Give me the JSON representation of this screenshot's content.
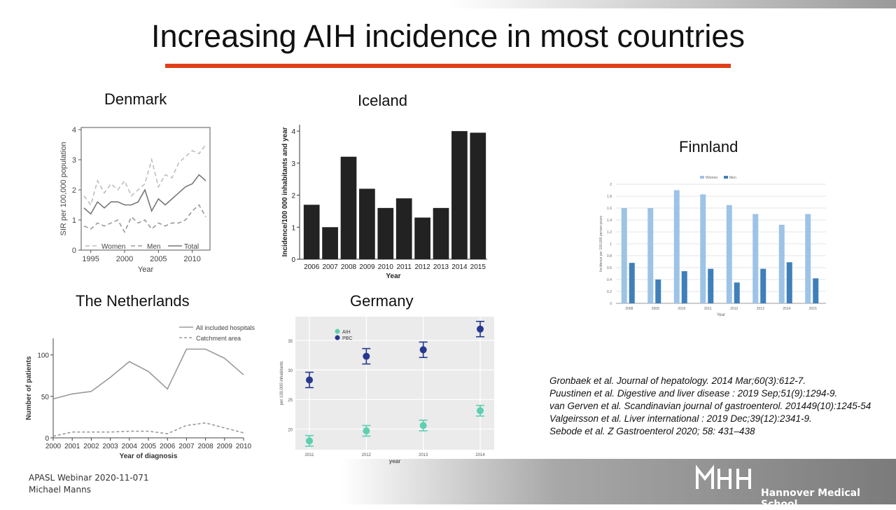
{
  "slide": {
    "title": "Increasing AIH incidence in most countries",
    "accent_color": "#e0401b",
    "references": [
      "Gronbaek et al. Journal of hepatology. 2014 Mar;60(3):612-7.",
      "Puustinen et al. Digestive and liver disease : 2019 Sep;51(9):1294-9.",
      "van Gerven et al. Scandinavian journal of gastroenterol. 201449(10):1245-54",
      "Valgeirsson et al. Liver international : 2019 Dec;39(12):2341-9.",
      "Sebode et al. Z Gastroenterol 2020; 58: 431–438"
    ],
    "footer": [
      "APASL Webinar 2020-11-071",
      "Michael Manns"
    ],
    "logo_text": "Hannover Medical School",
    "logo_icon": "mhh-logo-icon"
  },
  "chart_data": [
    {
      "country": "Denmark",
      "type": "line",
      "ylabel": "SIR per 100,000 population",
      "xlabel": "Year",
      "ylim": [
        0,
        4
      ],
      "xlim": [
        1994,
        2012
      ],
      "x_ticks": [
        1995,
        2000,
        2005,
        2010
      ],
      "y_ticks": [
        0,
        1,
        2,
        3,
        4
      ],
      "legend": [
        "Women",
        "Men",
        "Total"
      ],
      "legend_position": "bottom",
      "series": [
        {
          "name": "Women",
          "style": "dashed-light",
          "x": [
            1994,
            1995,
            1996,
            1997,
            1998,
            1999,
            2000,
            2001,
            2002,
            2003,
            2004,
            2005,
            2006,
            2007,
            2008,
            2009,
            2010,
            2011,
            2012
          ],
          "values": [
            1.8,
            1.5,
            2.3,
            1.9,
            2.2,
            2.0,
            2.3,
            1.8,
            2.0,
            2.2,
            3.0,
            2.1,
            2.5,
            2.4,
            2.9,
            3.1,
            3.3,
            3.2,
            3.5
          ]
        },
        {
          "name": "Men",
          "style": "dashed-dark",
          "x": [
            1994,
            1995,
            1996,
            1997,
            1998,
            1999,
            2000,
            2001,
            2002,
            2003,
            2004,
            2005,
            2006,
            2007,
            2008,
            2009,
            2010,
            2011,
            2012
          ],
          "values": [
            0.8,
            0.7,
            0.9,
            0.8,
            0.9,
            1.0,
            0.6,
            1.1,
            0.9,
            1.0,
            0.7,
            0.9,
            0.8,
            0.9,
            0.9,
            1.0,
            1.3,
            1.5,
            1.1
          ]
        },
        {
          "name": "Total",
          "style": "solid",
          "x": [
            1994,
            1995,
            1996,
            1997,
            1998,
            1999,
            2000,
            2001,
            2002,
            2003,
            2004,
            2005,
            2006,
            2007,
            2008,
            2009,
            2010,
            2011,
            2012
          ],
          "values": [
            1.4,
            1.2,
            1.6,
            1.4,
            1.6,
            1.6,
            1.5,
            1.5,
            1.6,
            2.0,
            1.3,
            1.7,
            1.5,
            1.7,
            1.9,
            2.1,
            2.2,
            2.5,
            2.3
          ]
        }
      ]
    },
    {
      "country": "Iceland",
      "type": "bar",
      "ylabel": "Incidence/100 000 inhabitants and year",
      "xlabel": "Year",
      "ylim": [
        0,
        4.2
      ],
      "y_ticks": [
        0,
        1,
        2,
        3,
        4
      ],
      "categories": [
        "2006",
        "2007",
        "2008",
        "2009",
        "2010",
        "2011",
        "2012",
        "2013",
        "2014",
        "2015"
      ],
      "values": [
        1.7,
        1.0,
        3.2,
        2.2,
        1.6,
        1.9,
        1.3,
        1.6,
        4.0,
        3.95
      ],
      "bar_color": "#222222"
    },
    {
      "country": "Finnland",
      "type": "bar",
      "ylabel": "Incidence per 100,000 person-years",
      "xlabel": "Year",
      "ylim": [
        0,
        2
      ],
      "y_ticks": [
        0,
        0.2,
        0.4,
        0.6,
        0.8,
        1,
        1.2,
        1.4,
        1.6,
        1.8,
        2
      ],
      "categories": [
        "2008",
        "2009",
        "2010",
        "2011",
        "2012",
        "2013",
        "2014",
        "2015"
      ],
      "legend_position": "top",
      "series": [
        {
          "name": "Women",
          "color": "#9dc3e6",
          "values": [
            1.6,
            1.6,
            1.9,
            1.83,
            1.65,
            1.5,
            1.32,
            1.5
          ]
        },
        {
          "name": "Men",
          "color": "#3f7fba",
          "values": [
            0.68,
            0.4,
            0.54,
            0.58,
            0.35,
            0.58,
            0.69,
            0.42
          ]
        }
      ]
    },
    {
      "country": "The Netherlands",
      "type": "line",
      "ylabel": "Number of patients",
      "xlabel": "Year of diagnosis",
      "ylim": [
        0,
        120
      ],
      "y_ticks": [
        0,
        50,
        100
      ],
      "x": [
        2000,
        2001,
        2002,
        2003,
        2004,
        2005,
        2006,
        2007,
        2008,
        2009,
        2010
      ],
      "legend_position": "top-right",
      "series": [
        {
          "name": "All included hospitals",
          "style": "solid",
          "values": [
            47,
            53,
            56,
            73,
            92,
            80,
            59,
            107,
            107,
            96,
            76
          ]
        },
        {
          "name": "Catchment area",
          "style": "dashed",
          "values": [
            2,
            7,
            7,
            7,
            8,
            8,
            5,
            15,
            18,
            12,
            6
          ]
        }
      ]
    },
    {
      "country": "Germany",
      "type": "scatter",
      "ylabel": "per 100,000 inhabitants",
      "xlabel": "year",
      "ylim": [
        16.5,
        39
      ],
      "y_ticks": [
        20,
        25,
        30,
        35
      ],
      "categories": [
        "2011",
        "2012",
        "2013",
        "2014"
      ],
      "legend_position": "top-left",
      "series": [
        {
          "name": "AIH",
          "color": "#5ecfb1",
          "values": [
            18.0,
            19.7,
            20.6,
            23.1
          ],
          "err": [
            0.9,
            0.9,
            0.9,
            0.9
          ]
        },
        {
          "name": "PBC",
          "color": "#26388f",
          "values": [
            28.3,
            32.3,
            33.4,
            36.9
          ],
          "err": [
            1.3,
            1.3,
            1.3,
            1.3
          ]
        }
      ]
    }
  ]
}
